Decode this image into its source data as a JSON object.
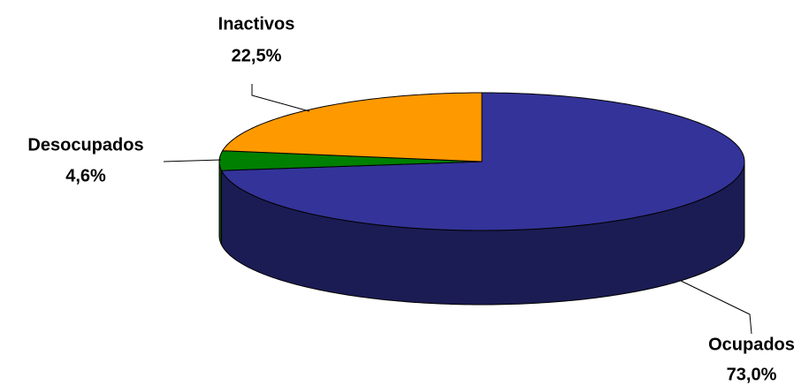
{
  "chart_data": {
    "type": "pie3d",
    "categories": [
      "Ocupados",
      "Desocupados",
      "Inactivos"
    ],
    "values": [
      73.0,
      4.6,
      22.5
    ],
    "value_labels": [
      "73,0%",
      "4,6%",
      "22,5%"
    ],
    "colors": [
      "#333399",
      "#008000",
      "#ff9900"
    ]
  }
}
